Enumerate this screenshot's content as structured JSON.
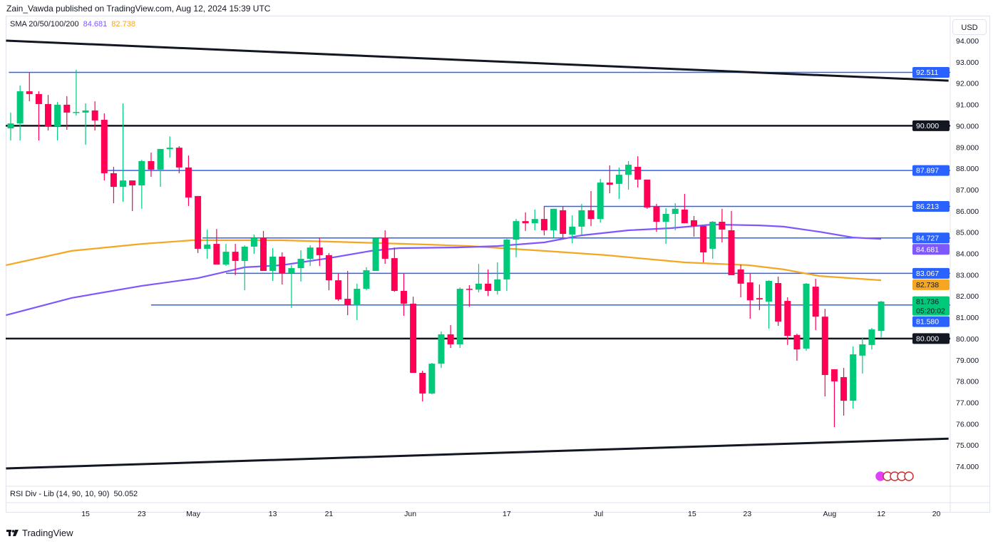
{
  "header": {
    "published": "Zain_Vawda published on TradingView.com, Aug 12, 2024 15:39 UTC"
  },
  "legend": {
    "label": "SMA 20/50/100/200",
    "value_purple": "84.681",
    "value_orange": "82.738"
  },
  "currency": "USD",
  "rsi": {
    "label": "RSI Div - Lib (14, 90, 10, 90)",
    "value": "50.052"
  },
  "footer": {
    "brand": "TradingView"
  },
  "colors": {
    "up": "#00c97a",
    "down": "#ff0055",
    "blue": "#2962ff",
    "purple": "#7e57ff",
    "orange": "#f5a623",
    "black": "#131722"
  },
  "chart_data": {
    "type": "candlestick",
    "ylim": [
      74,
      94
    ],
    "y_ticks": [
      "94.000",
      "93.000",
      "92.000",
      "91.000",
      "90.000",
      "89.000",
      "88.000",
      "87.000",
      "86.000",
      "85.000",
      "84.000",
      "83.000",
      "82.000",
      "81.000",
      "80.000",
      "79.000",
      "78.000",
      "77.000",
      "76.000",
      "75.000",
      "74.000"
    ],
    "x_ticks": [
      {
        "label": "15",
        "i": 8
      },
      {
        "label": "23",
        "i": 14
      },
      {
        "label": "May",
        "i": 19.5
      },
      {
        "label": "13",
        "i": 28
      },
      {
        "label": "21",
        "i": 34
      },
      {
        "label": "Jun",
        "i": 42.7
      },
      {
        "label": "17",
        "i": 53
      },
      {
        "label": "Jul",
        "i": 62.8
      },
      {
        "label": "15",
        "i": 72.8
      },
      {
        "label": "23",
        "i": 78.7
      },
      {
        "label": "Aug",
        "i": 87.5
      },
      {
        "label": "12",
        "i": 93
      },
      {
        "label": "20",
        "i": 98.9
      }
    ],
    "ohlc": [
      [
        89.88,
        90.62,
        89.31,
        90.11
      ],
      [
        90.11,
        91.89,
        89.31,
        91.62
      ],
      [
        91.62,
        92.49,
        91.15,
        91.49
      ],
      [
        91.49,
        91.62,
        89.31,
        91.02
      ],
      [
        91.02,
        91.45,
        89.78,
        89.98
      ],
      [
        89.98,
        91.12,
        89.31,
        90.99
      ],
      [
        90.99,
        91.39,
        89.81,
        90.62
      ],
      [
        90.6,
        92.63,
        90.48,
        90.65
      ],
      [
        90.62,
        91.05,
        89.11,
        90.72
      ],
      [
        90.72,
        91.15,
        89.78,
        90.25
      ],
      [
        90.28,
        90.58,
        87.43,
        87.77
      ],
      [
        87.77,
        88.07,
        86.36,
        87.13
      ],
      [
        87.13,
        91.05,
        86.43,
        87.43
      ],
      [
        87.43,
        87.43,
        85.99,
        87.2
      ],
      [
        87.2,
        88.4,
        86.1,
        88.34
      ],
      [
        88.34,
        88.74,
        87.6,
        87.94
      ],
      [
        87.94,
        88.91,
        87.13,
        88.91
      ],
      [
        88.9,
        89.5,
        88.5,
        88.97
      ],
      [
        88.97,
        89.04,
        87.77,
        88.04
      ],
      [
        88.04,
        88.6,
        86.23,
        86.63
      ],
      [
        86.7,
        86.7,
        84.02,
        84.22
      ],
      [
        84.22,
        85.12,
        83.75,
        84.42
      ],
      [
        84.45,
        85.15,
        83.48,
        83.48
      ],
      [
        83.48,
        84.45,
        83.41,
        84.08
      ],
      [
        84.08,
        84.45,
        82.98,
        83.65
      ],
      [
        83.65,
        84.38,
        82.27,
        84.32
      ],
      [
        84.32,
        84.89,
        83.98,
        84.72
      ],
      [
        84.72,
        85.06,
        83.18,
        83.18
      ],
      [
        83.18,
        84.25,
        82.71,
        83.85
      ],
      [
        83.85,
        84.05,
        82.54,
        83.08
      ],
      [
        83.08,
        83.45,
        81.44,
        83.31
      ],
      [
        83.31,
        84.15,
        82.68,
        83.75
      ],
      [
        83.75,
        84.38,
        83.41,
        84.28
      ],
      [
        84.28,
        84.75,
        83.41,
        83.92
      ],
      [
        83.92,
        84.02,
        82.27,
        82.74
      ],
      [
        82.74,
        83.08,
        81.77,
        81.84
      ],
      [
        81.87,
        83.18,
        81.1,
        81.57
      ],
      [
        81.57,
        82.58,
        80.87,
        82.34
      ],
      [
        82.34,
        83.35,
        82.27,
        83.21
      ],
      [
        83.18,
        84.72,
        83.18,
        84.72
      ],
      [
        84.72,
        85.09,
        83.51,
        83.75
      ],
      [
        83.78,
        84.28,
        82.2,
        82.24
      ],
      [
        82.24,
        83.05,
        81.07,
        81.64
      ],
      [
        81.64,
        81.97,
        78.39,
        78.39
      ],
      [
        78.39,
        78.49,
        77.05,
        77.42
      ],
      [
        77.42,
        78.86,
        77.38,
        78.82
      ],
      [
        78.82,
        80.33,
        78.62,
        80.2
      ],
      [
        80.2,
        80.63,
        79.56,
        79.73
      ],
      [
        79.73,
        82.4,
        79.56,
        82.34
      ],
      [
        82.34,
        82.51,
        81.5,
        82.3
      ],
      [
        82.3,
        83.51,
        82.17,
        82.58
      ],
      [
        82.58,
        83.25,
        82.0,
        82.24
      ],
      [
        82.24,
        83.58,
        82.07,
        82.78
      ],
      [
        82.78,
        84.69,
        82.24,
        84.65
      ],
      [
        84.65,
        85.62,
        83.82,
        85.52
      ],
      [
        85.52,
        85.93,
        85.06,
        85.42
      ],
      [
        85.42,
        86.06,
        85.09,
        85.62
      ],
      [
        85.62,
        86.23,
        84.85,
        85.09
      ],
      [
        85.09,
        86.1,
        84.75,
        86.1
      ],
      [
        86.03,
        86.2,
        84.75,
        84.92
      ],
      [
        84.89,
        85.79,
        84.48,
        85.26
      ],
      [
        85.26,
        86.33,
        84.89,
        86.03
      ],
      [
        86.03,
        86.93,
        85.29,
        85.62
      ],
      [
        85.62,
        87.5,
        85.45,
        87.33
      ],
      [
        87.33,
        88.14,
        86.83,
        87.23
      ],
      [
        87.27,
        88.04,
        86.56,
        87.7
      ],
      [
        87.7,
        88.34,
        87.0,
        88.17
      ],
      [
        88.07,
        88.57,
        87.1,
        87.47
      ],
      [
        87.47,
        87.47,
        86.1,
        86.16
      ],
      [
        86.2,
        86.33,
        85.02,
        85.49
      ],
      [
        85.49,
        86.13,
        84.45,
        85.86
      ],
      [
        85.86,
        86.36,
        85.09,
        86.1
      ],
      [
        86.06,
        86.8,
        85.42,
        85.42
      ],
      [
        85.56,
        85.76,
        84.79,
        85.29
      ],
      [
        85.29,
        85.29,
        83.58,
        84.05
      ],
      [
        84.22,
        85.52,
        83.75,
        85.49
      ],
      [
        85.49,
        86.1,
        84.52,
        85.12
      ],
      [
        85.09,
        86.0,
        82.98,
        82.98
      ],
      [
        83.25,
        83.48,
        81.94,
        82.58
      ],
      [
        82.64,
        83.05,
        80.93,
        81.8
      ],
      [
        81.9,
        82.54,
        81.34,
        81.84
      ],
      [
        81.74,
        82.74,
        80.47,
        82.71
      ],
      [
        82.61,
        82.91,
        80.6,
        80.8
      ],
      [
        81.77,
        81.94,
        79.7,
        80.13
      ],
      [
        80.17,
        80.23,
        78.96,
        79.49
      ],
      [
        79.53,
        82.61,
        79.43,
        82.58
      ],
      [
        82.44,
        82.81,
        80.4,
        81.03
      ],
      [
        81.03,
        81.4,
        77.28,
        78.29
      ],
      [
        78.56,
        78.56,
        75.84,
        77.99
      ],
      [
        78.19,
        78.62,
        76.38,
        77.08
      ],
      [
        77.08,
        79.63,
        76.71,
        79.26
      ],
      [
        79.2,
        80.06,
        78.36,
        79.73
      ],
      [
        79.7,
        80.5,
        79.49,
        80.43
      ],
      [
        80.36,
        81.77,
        80.06,
        81.74
      ]
    ],
    "sma_purple": [
      [
        -0.5,
        81.1
      ],
      [
        6.5,
        81.91
      ],
      [
        14,
        82.48
      ],
      [
        20,
        82.84
      ],
      [
        25,
        83.35
      ],
      [
        29,
        83.45
      ],
      [
        34,
        83.78
      ],
      [
        38.5,
        84.12
      ],
      [
        41.5,
        84.25
      ],
      [
        47.6,
        84.28
      ],
      [
        52,
        84.35
      ],
      [
        57,
        84.52
      ],
      [
        61,
        84.85
      ],
      [
        66,
        85.09
      ],
      [
        70.5,
        85.19
      ],
      [
        75,
        85.36
      ],
      [
        80,
        85.32
      ],
      [
        82.6,
        85.26
      ],
      [
        86.4,
        85.02
      ],
      [
        90,
        84.75
      ],
      [
        93,
        84.68
      ]
    ],
    "sma_orange": [
      [
        -0.5,
        83.45
      ],
      [
        6.5,
        84.12
      ],
      [
        14,
        84.45
      ],
      [
        19.4,
        84.62
      ],
      [
        29,
        84.62
      ],
      [
        37,
        84.52
      ],
      [
        44.5,
        84.42
      ],
      [
        49,
        84.35
      ],
      [
        57,
        84.12
      ],
      [
        63.6,
        83.92
      ],
      [
        72,
        83.58
      ],
      [
        78.8,
        83.45
      ],
      [
        82.6,
        83.25
      ],
      [
        86.4,
        82.94
      ],
      [
        93,
        82.74
      ]
    ],
    "levels": [
      {
        "value": 92.511,
        "label": "92.511",
        "kind": "blue",
        "from": -0.2
      },
      {
        "value": 90.0,
        "label": "90.000",
        "kind": "black",
        "from": -1
      },
      {
        "value": 87.897,
        "label": "87.897",
        "kind": "blue",
        "from": 10.3
      },
      {
        "value": 86.213,
        "label": "86.213",
        "kind": "blue",
        "from": 57
      },
      {
        "value": 84.727,
        "label": "84.727",
        "kind": "blue",
        "from": 20.5
      },
      {
        "value": 83.067,
        "label": "83.067",
        "kind": "blue",
        "from": 23
      },
      {
        "value": 81.58,
        "label": "81.580",
        "kind": "blue",
        "from": 15
      },
      {
        "value": 80.0,
        "label": "80.000",
        "kind": "black",
        "from": -1
      }
    ],
    "trendlines": [
      {
        "from": [
          -0.5,
          94.0
        ],
        "to": [
          100.2,
          92.12
        ]
      },
      {
        "from": [
          -0.5,
          73.9
        ],
        "to": [
          100.2,
          75.3
        ]
      }
    ],
    "badges": [
      {
        "label": "84.681",
        "value": 84.681,
        "kind": "purple"
      },
      {
        "label": "82.738",
        "value": 82.738,
        "kind": "orange"
      },
      {
        "label": "81.736",
        "sub": "05:20:02",
        "value": 81.736,
        "kind": "up"
      }
    ]
  }
}
